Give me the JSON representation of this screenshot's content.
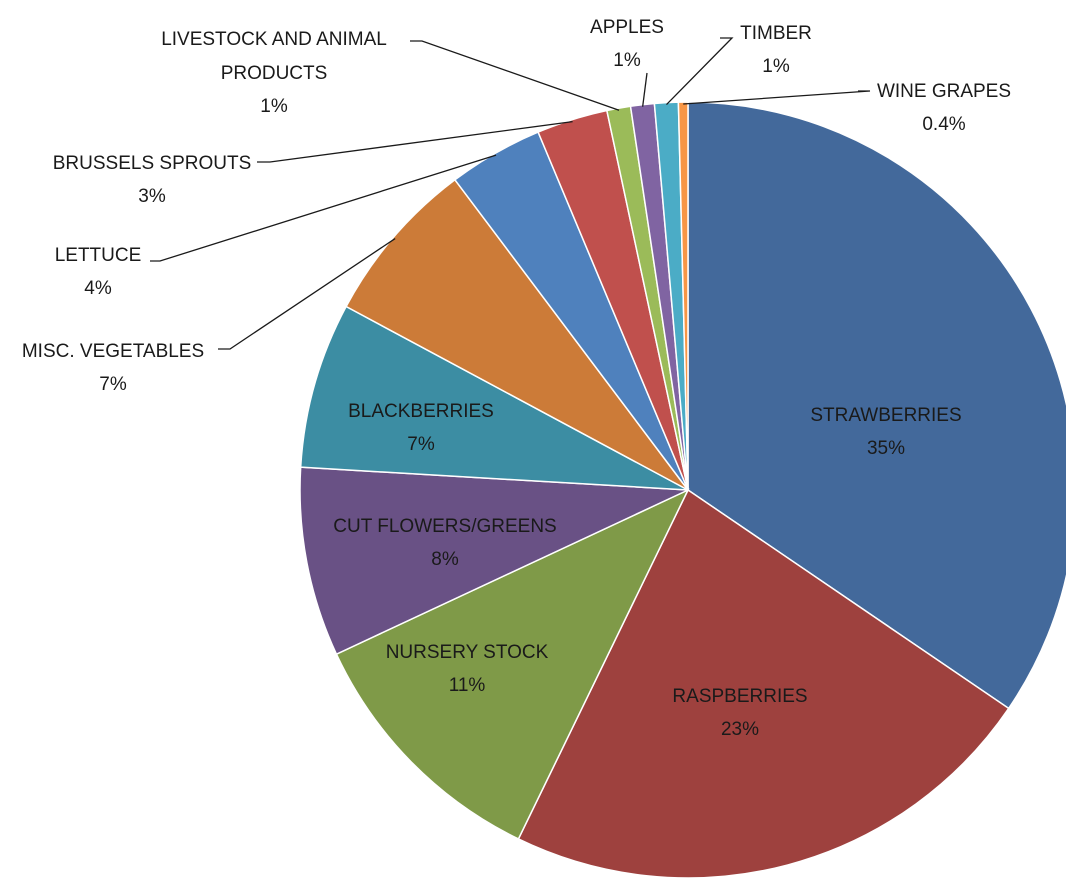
{
  "chart_data": {
    "type": "pie",
    "title": "",
    "start_angle_deg": 0,
    "direction": "clockwise",
    "slices": [
      {
        "label": "STRAWBERRIES",
        "value": 35,
        "pct_label": "35%",
        "color": "#43699b",
        "label_position": "inside"
      },
      {
        "label": "RASPBERRIES",
        "value": 23,
        "pct_label": "23%",
        "color": "#9e413e",
        "label_position": "inside"
      },
      {
        "label": "NURSERY STOCK",
        "value": 11,
        "pct_label": "11%",
        "color": "#7f9a48",
        "label_position": "inside"
      },
      {
        "label": "CUT FLOWERS/GREENS",
        "value": 8,
        "pct_label": "8%",
        "color": "#695185",
        "label_position": "inside"
      },
      {
        "label": "BLACKBERRIES",
        "value": 7,
        "pct_label": "7%",
        "color": "#3c8da3",
        "label_position": "inside"
      },
      {
        "label": "MISC. VEGETABLES",
        "value": 7,
        "pct_label": "7%",
        "color": "#cc7b38",
        "label_position": "outside"
      },
      {
        "label": "LETTUCE",
        "value": 4,
        "pct_label": "4%",
        "color": "#4f81bd",
        "label_position": "outside"
      },
      {
        "label": "BRUSSELS SPROUTS",
        "value": 3,
        "pct_label": "3%",
        "color": "#c0504d",
        "label_position": "outside"
      },
      {
        "label": "LIVESTOCK AND ANIMAL PRODUCTS",
        "value": 1,
        "pct_label": "1%",
        "color": "#9bbb59",
        "label_position": "outside"
      },
      {
        "label": "APPLES",
        "value": 1,
        "pct_label": "1%",
        "color": "#8064a2",
        "label_position": "outside"
      },
      {
        "label": "TIMBER",
        "value": 1,
        "pct_label": "1%",
        "color": "#4bacc6",
        "label_position": "outside"
      },
      {
        "label": "WINE GRAPES",
        "value": 0.4,
        "pct_label": "0.4%",
        "color": "#f79646",
        "label_position": "outside"
      }
    ]
  }
}
